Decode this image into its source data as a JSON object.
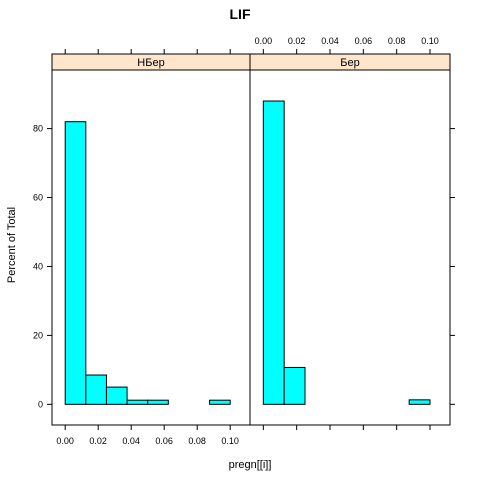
{
  "chart_data": {
    "type": "bar",
    "title": "LIF",
    "xlabel": "pregn[[i]]",
    "ylabel": "Percent of Total",
    "xlim": [
      -0.008,
      0.112
    ],
    "ylim": [
      -6,
      97
    ],
    "x_ticks": [
      0.0,
      0.02,
      0.04,
      0.06,
      0.08,
      0.1
    ],
    "x_tick_labels": [
      "0.00",
      "0.02",
      "0.04",
      "0.06",
      "0.08",
      "0.10"
    ],
    "y_ticks": [
      0,
      20,
      40,
      60,
      80
    ],
    "y_tick_labels": [
      "0",
      "20",
      "40",
      "60",
      "80"
    ],
    "bin_edges": [
      0.0,
      0.0125,
      0.025,
      0.0375,
      0.05,
      0.0625,
      0.075,
      0.0875,
      0.1
    ],
    "bar_color": "#00ffff",
    "strip_color": "#ffe5cc",
    "panels": [
      {
        "name": "НБер",
        "values": [
          82,
          8.5,
          5,
          1.2,
          1.2,
          0,
          0,
          1.2
        ]
      },
      {
        "name": "Бер",
        "values": [
          88,
          10.7,
          0,
          0,
          0,
          0,
          0,
          1.3
        ]
      }
    ]
  }
}
